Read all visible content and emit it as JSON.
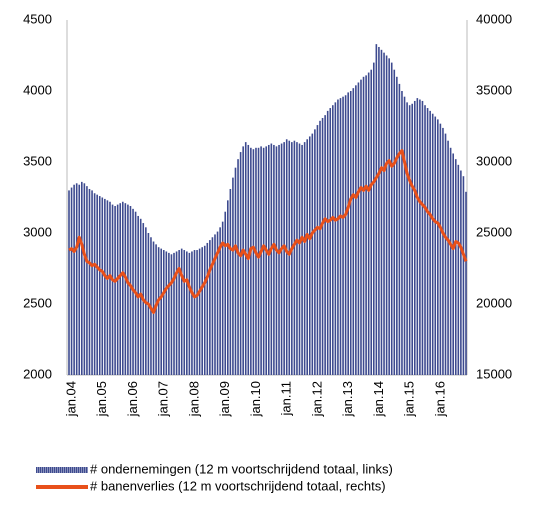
{
  "chart_data": {
    "type": "bar_line",
    "categories": [
      "jan.04",
      null,
      null,
      null,
      null,
      null,
      null,
      null,
      null,
      null,
      null,
      null,
      "jan.05",
      null,
      null,
      null,
      null,
      null,
      null,
      null,
      null,
      null,
      null,
      null,
      "jan.06",
      null,
      null,
      null,
      null,
      null,
      null,
      null,
      null,
      null,
      null,
      null,
      "jan.07",
      null,
      null,
      null,
      null,
      null,
      null,
      null,
      null,
      null,
      null,
      null,
      "jan.08",
      null,
      null,
      null,
      null,
      null,
      null,
      null,
      null,
      null,
      null,
      null,
      "jan.09",
      null,
      null,
      null,
      null,
      null,
      null,
      null,
      null,
      null,
      null,
      null,
      "jan.10",
      null,
      null,
      null,
      null,
      null,
      null,
      null,
      null,
      null,
      null,
      null,
      "jan.11",
      null,
      null,
      null,
      null,
      null,
      null,
      null,
      null,
      null,
      null,
      null,
      "jan.12",
      null,
      null,
      null,
      null,
      null,
      null,
      null,
      null,
      null,
      null,
      null,
      "jan.13",
      null,
      null,
      null,
      null,
      null,
      null,
      null,
      null,
      null,
      null,
      null,
      "jan.14",
      null,
      null,
      null,
      null,
      null,
      null,
      null,
      null,
      null,
      null,
      null,
      "jan.15",
      null,
      null,
      null,
      null,
      null,
      null,
      null,
      null,
      null,
      null,
      null,
      "jan.16",
      null,
      null,
      null,
      null,
      null,
      null,
      null,
      null,
      null,
      null,
      null
    ],
    "series": [
      {
        "name": "# ondernemingen (12 m voortschrijdend totaal, links)",
        "type": "bar",
        "color": "#3d4a8f",
        "axis": "y",
        "values": [
          3300,
          3320,
          3340,
          3350,
          3340,
          3360,
          3350,
          3330,
          3310,
          3300,
          3280,
          3270,
          3260,
          3250,
          3240,
          3230,
          3220,
          3200,
          3190,
          3200,
          3210,
          3220,
          3210,
          3200,
          3190,
          3170,
          3150,
          3120,
          3100,
          3070,
          3040,
          3000,
          2970,
          2940,
          2920,
          2900,
          2890,
          2880,
          2870,
          2860,
          2850,
          2860,
          2870,
          2880,
          2890,
          2880,
          2870,
          2860,
          2870,
          2880,
          2880,
          2890,
          2900,
          2910,
          2930,
          2950,
          2970,
          2990,
          3010,
          3040,
          3080,
          3150,
          3230,
          3310,
          3390,
          3460,
          3520,
          3570,
          3610,
          3640,
          3620,
          3600,
          3590,
          3600,
          3600,
          3610,
          3600,
          3610,
          3620,
          3630,
          3620,
          3610,
          3620,
          3630,
          3640,
          3660,
          3650,
          3640,
          3650,
          3640,
          3630,
          3620,
          3640,
          3660,
          3680,
          3700,
          3730,
          3760,
          3790,
          3810,
          3830,
          3860,
          3880,
          3900,
          3920,
          3940,
          3950,
          3960,
          3970,
          3990,
          4000,
          4020,
          4040,
          4060,
          4080,
          4100,
          4110,
          4130,
          4150,
          4200,
          4330,
          4310,
          4290,
          4270,
          4250,
          4230,
          4200,
          4150,
          4100,
          4050,
          4000,
          3960,
          3920,
          3900,
          3910,
          3930,
          3950,
          3940,
          3930,
          3900,
          3880,
          3860,
          3840,
          3820,
          3800,
          3770,
          3740,
          3700,
          3650,
          3600,
          3560,
          3520,
          3480,
          3440,
          3400,
          3290
        ]
      },
      {
        "name": "# banenverlies (12 m voortschrijdend totaal, rechts)",
        "type": "line",
        "color": "#e8501a",
        "axis": "y2",
        "values": [
          23800,
          23900,
          23700,
          24000,
          24700,
          24200,
          23500,
          23000,
          22900,
          22700,
          22800,
          22600,
          22400,
          22300,
          22000,
          21800,
          22000,
          21700,
          21600,
          21800,
          22000,
          22200,
          21900,
          21500,
          21300,
          21000,
          20800,
          20500,
          20700,
          20300,
          20100,
          20000,
          19700,
          19400,
          19900,
          20300,
          20500,
          20800,
          21100,
          21300,
          21500,
          21800,
          22200,
          22500,
          22000,
          21600,
          21700,
          21200,
          20800,
          20500,
          20600,
          20900,
          21200,
          21500,
          21900,
          22400,
          22800,
          23200,
          23600,
          24000,
          24300,
          24100,
          24200,
          23900,
          23800,
          24100,
          23600,
          23400,
          23800,
          23500,
          23200,
          23900,
          24000,
          23600,
          23300,
          23700,
          24100,
          23800,
          23500,
          23900,
          24200,
          23800,
          23600,
          23900,
          24100,
          23700,
          23500,
          23900,
          24200,
          24500,
          24300,
          24700,
          24400,
          24900,
          24600,
          25000,
          25200,
          25400,
          25300,
          25700,
          26000,
          25800,
          25900,
          26100,
          25900,
          26000,
          26200,
          26100,
          26300,
          26800,
          27400,
          27700,
          27500,
          27900,
          28200,
          28000,
          28300,
          28000,
          28400,
          28600,
          28900,
          29200,
          29600,
          29400,
          29900,
          30100,
          29700,
          29900,
          30300,
          30600,
          30800,
          30000,
          29200,
          28700,
          28300,
          28000,
          27500,
          27200,
          27000,
          26800,
          26500,
          26300,
          26000,
          25800,
          25700,
          25400,
          25000,
          24700,
          24500,
          24200,
          23900,
          24400,
          24300,
          24000,
          23500,
          23000
        ]
      }
    ],
    "ylim": [
      2000,
      4500
    ],
    "yticks": [
      2000,
      2500,
      3000,
      3500,
      4000,
      4500
    ],
    "y2lim": [
      15000,
      40000
    ],
    "y2ticks": [
      15000,
      20000,
      25000,
      30000,
      35000,
      40000
    ],
    "legend": "bottom"
  }
}
